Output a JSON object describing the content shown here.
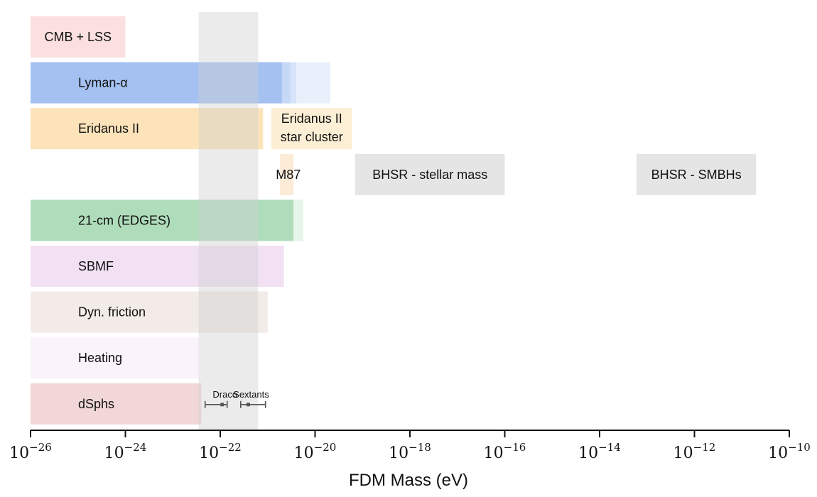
{
  "chart_data": {
    "type": "bar",
    "orientation": "horizontal-range",
    "xscale": "log",
    "xlabel": "FDM Mass (eV)",
    "xlim": [
      "1e-26",
      "1e-10"
    ],
    "xtick_mantissa": "10",
    "xtick_exponents": [
      "−26",
      "−24",
      "−22",
      "−20",
      "−18",
      "−16",
      "−14",
      "−12",
      "−10"
    ],
    "shaded_region": {
      "from": "3.5e-23",
      "to": "6.3e-22",
      "color": "#d0d0d0"
    },
    "rows": [
      {
        "label": "CMB + LSS",
        "color": "#f9c4c4",
        "bars": [
          {
            "from": "1e-26",
            "to": "1e-24"
          }
        ]
      },
      {
        "label": "Lyman-α",
        "color": "#7ba7ee",
        "bars": [
          {
            "from": "1e-26",
            "to": "2.0e-21"
          },
          {
            "from": "1e-26",
            "to": "3.0e-21"
          },
          {
            "from": "1e-26",
            "to": "4.0e-21"
          },
          {
            "from": "1e-26",
            "to": "2.1e-20"
          }
        ]
      },
      {
        "label": "Eridanus II",
        "color": "#f9cc80",
        "bars": [
          {
            "from": "1e-26",
            "to": "8.0e-22"
          }
        ]
      },
      {
        "label": "Eridanus II star cluster",
        "label_lines": [
          "Eridanus II",
          "star cluster"
        ],
        "color": "#fbe1b3",
        "bars": [
          {
            "from": "1.2e-21",
            "to": "6.0e-20"
          }
        ]
      },
      {
        "label": "M87",
        "color": "#fbe6c9",
        "bars": [
          {
            "from": "1.8e-21",
            "to": "3.5e-21"
          }
        ]
      },
      {
        "label": "BHSR - stellar mass",
        "color": "#e0e0e0",
        "bars": [
          {
            "from": "7e-20",
            "to": "1e-16"
          }
        ]
      },
      {
        "label": "BHSR - SMBHs",
        "color": "#e0e0e0",
        "bars": [
          {
            "from": "6e-14",
            "to": "2e-11"
          }
        ]
      },
      {
        "label": "21-cm (EDGES)",
        "color": "#6cbe82",
        "bars": [
          {
            "from": "1e-26",
            "to": "3.5e-21"
          },
          {
            "from": "1e-26",
            "to": "5.6e-21"
          }
        ]
      },
      {
        "label": "SBMF",
        "color": "#ecd3ee",
        "bars": [
          {
            "from": "1e-26",
            "to": "2.2e-21"
          }
        ]
      },
      {
        "label": "Dyn. friction",
        "color": "#ede3dd",
        "bars": [
          {
            "from": "1e-26",
            "to": "1e-21"
          }
        ]
      },
      {
        "label": "Heating",
        "color": "#faeef9",
        "bars": [
          {
            "from": "1e-26",
            "to": "3.5e-23"
          }
        ]
      },
      {
        "label": "dSphs",
        "color": "#e6b7b7",
        "bars": [
          {
            "from": "1e-26",
            "to": "4e-23"
          }
        ],
        "error_bars": [
          {
            "label": "Draco",
            "center": "1.1e-22",
            "low": "4.8e-23",
            "high": "1.4e-22"
          },
          {
            "label": "Sextants",
            "center": "3.9e-22",
            "low": "2.7e-22",
            "high": "9.0e-22"
          }
        ]
      }
    ]
  }
}
